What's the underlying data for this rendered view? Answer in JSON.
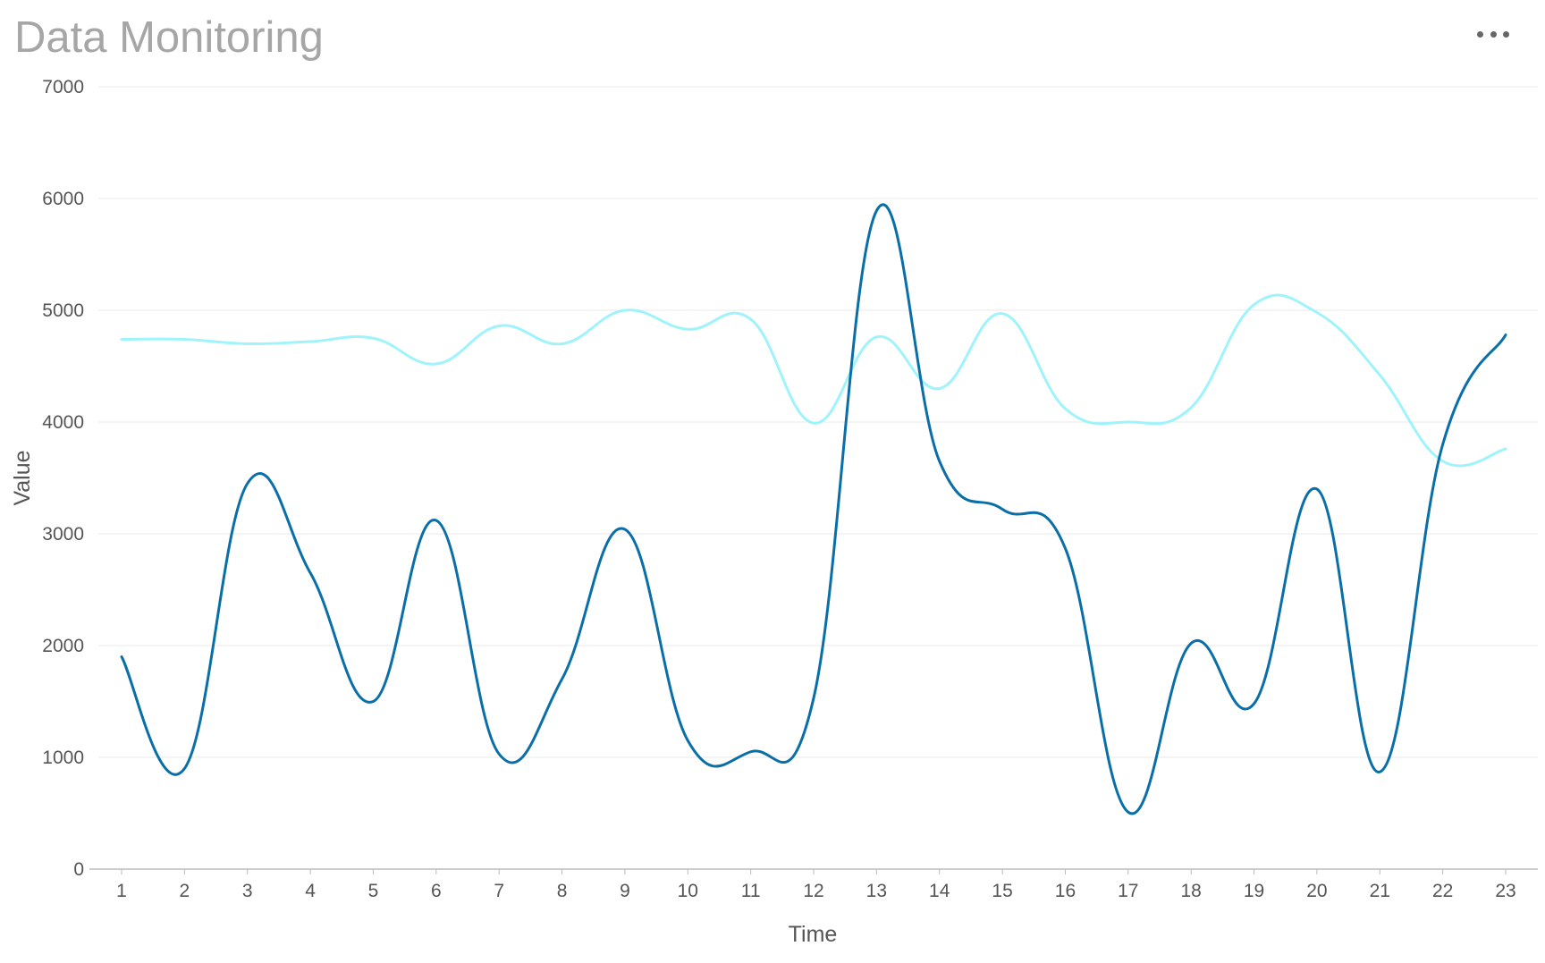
{
  "header": {
    "title": "Data Monitoring",
    "more_icon": "more-horizontal-icon"
  },
  "chart_data": {
    "type": "line",
    "title": "Data Monitoring",
    "xlabel": "Time",
    "ylabel": "Value",
    "x": [
      "1",
      "2",
      "3",
      "4",
      "5",
      "6",
      "7",
      "8",
      "9",
      "10",
      "11",
      "12",
      "13",
      "14",
      "15",
      "16",
      "17",
      "18",
      "19",
      "20",
      "21",
      "22",
      "23"
    ],
    "ylim": [
      0,
      7000
    ],
    "yticks": [
      "0",
      "1000",
      "2000",
      "3000",
      "4000",
      "5000",
      "6000",
      "7000"
    ],
    "grid": true,
    "legend": "none",
    "smooth": true,
    "series": [
      {
        "color": "#0a6fa8",
        "values": [
          1900,
          900,
          3450,
          2650,
          1500,
          3120,
          1030,
          1700,
          3040,
          1150,
          1050,
          1530,
          5890,
          3650,
          3220,
          2870,
          510,
          2020,
          1480,
          3400,
          870,
          3800,
          4780
        ]
      },
      {
        "color": "#9ff3fb",
        "values": [
          4740,
          4740,
          4700,
          4720,
          4750,
          4520,
          4860,
          4700,
          5000,
          4830,
          4920,
          3990,
          4760,
          4300,
          4970,
          4120,
          4000,
          4130,
          5050,
          4980,
          4420,
          3650,
          3760
        ]
      }
    ]
  }
}
